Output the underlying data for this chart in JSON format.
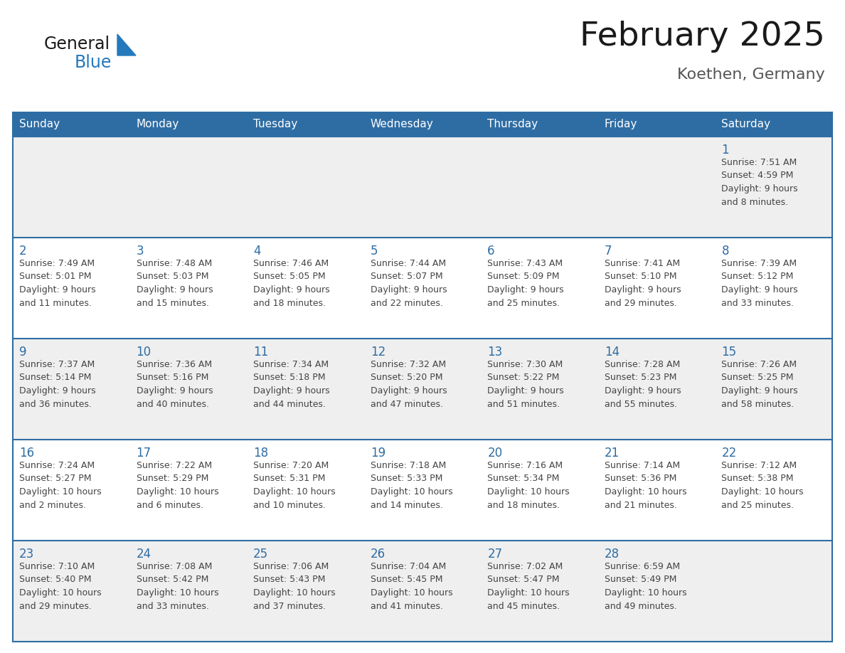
{
  "title": "February 2025",
  "subtitle": "Koethen, Germany",
  "days_of_week": [
    "Sunday",
    "Monday",
    "Tuesday",
    "Wednesday",
    "Thursday",
    "Friday",
    "Saturday"
  ],
  "header_bg": "#2E6DA4",
  "header_text": "#FFFFFF",
  "cell_bg_even": "#EFEFEF",
  "cell_bg_odd": "#FFFFFF",
  "row_divider_color": "#2E6DA4",
  "day_num_color": "#2E6DA4",
  "text_color": "#444444",
  "title_color": "#1A1A1A",
  "subtitle_color": "#555555",
  "logo_general_color": "#1A1A1A",
  "logo_blue_color": "#2479BD",
  "weeks": [
    [
      {
        "day": null,
        "info": null
      },
      {
        "day": null,
        "info": null
      },
      {
        "day": null,
        "info": null
      },
      {
        "day": null,
        "info": null
      },
      {
        "day": null,
        "info": null
      },
      {
        "day": null,
        "info": null
      },
      {
        "day": 1,
        "info": "Sunrise: 7:51 AM\nSunset: 4:59 PM\nDaylight: 9 hours\nand 8 minutes."
      }
    ],
    [
      {
        "day": 2,
        "info": "Sunrise: 7:49 AM\nSunset: 5:01 PM\nDaylight: 9 hours\nand 11 minutes."
      },
      {
        "day": 3,
        "info": "Sunrise: 7:48 AM\nSunset: 5:03 PM\nDaylight: 9 hours\nand 15 minutes."
      },
      {
        "day": 4,
        "info": "Sunrise: 7:46 AM\nSunset: 5:05 PM\nDaylight: 9 hours\nand 18 minutes."
      },
      {
        "day": 5,
        "info": "Sunrise: 7:44 AM\nSunset: 5:07 PM\nDaylight: 9 hours\nand 22 minutes."
      },
      {
        "day": 6,
        "info": "Sunrise: 7:43 AM\nSunset: 5:09 PM\nDaylight: 9 hours\nand 25 minutes."
      },
      {
        "day": 7,
        "info": "Sunrise: 7:41 AM\nSunset: 5:10 PM\nDaylight: 9 hours\nand 29 minutes."
      },
      {
        "day": 8,
        "info": "Sunrise: 7:39 AM\nSunset: 5:12 PM\nDaylight: 9 hours\nand 33 minutes."
      }
    ],
    [
      {
        "day": 9,
        "info": "Sunrise: 7:37 AM\nSunset: 5:14 PM\nDaylight: 9 hours\nand 36 minutes."
      },
      {
        "day": 10,
        "info": "Sunrise: 7:36 AM\nSunset: 5:16 PM\nDaylight: 9 hours\nand 40 minutes."
      },
      {
        "day": 11,
        "info": "Sunrise: 7:34 AM\nSunset: 5:18 PM\nDaylight: 9 hours\nand 44 minutes."
      },
      {
        "day": 12,
        "info": "Sunrise: 7:32 AM\nSunset: 5:20 PM\nDaylight: 9 hours\nand 47 minutes."
      },
      {
        "day": 13,
        "info": "Sunrise: 7:30 AM\nSunset: 5:22 PM\nDaylight: 9 hours\nand 51 minutes."
      },
      {
        "day": 14,
        "info": "Sunrise: 7:28 AM\nSunset: 5:23 PM\nDaylight: 9 hours\nand 55 minutes."
      },
      {
        "day": 15,
        "info": "Sunrise: 7:26 AM\nSunset: 5:25 PM\nDaylight: 9 hours\nand 58 minutes."
      }
    ],
    [
      {
        "day": 16,
        "info": "Sunrise: 7:24 AM\nSunset: 5:27 PM\nDaylight: 10 hours\nand 2 minutes."
      },
      {
        "day": 17,
        "info": "Sunrise: 7:22 AM\nSunset: 5:29 PM\nDaylight: 10 hours\nand 6 minutes."
      },
      {
        "day": 18,
        "info": "Sunrise: 7:20 AM\nSunset: 5:31 PM\nDaylight: 10 hours\nand 10 minutes."
      },
      {
        "day": 19,
        "info": "Sunrise: 7:18 AM\nSunset: 5:33 PM\nDaylight: 10 hours\nand 14 minutes."
      },
      {
        "day": 20,
        "info": "Sunrise: 7:16 AM\nSunset: 5:34 PM\nDaylight: 10 hours\nand 18 minutes."
      },
      {
        "day": 21,
        "info": "Sunrise: 7:14 AM\nSunset: 5:36 PM\nDaylight: 10 hours\nand 21 minutes."
      },
      {
        "day": 22,
        "info": "Sunrise: 7:12 AM\nSunset: 5:38 PM\nDaylight: 10 hours\nand 25 minutes."
      }
    ],
    [
      {
        "day": 23,
        "info": "Sunrise: 7:10 AM\nSunset: 5:40 PM\nDaylight: 10 hours\nand 29 minutes."
      },
      {
        "day": 24,
        "info": "Sunrise: 7:08 AM\nSunset: 5:42 PM\nDaylight: 10 hours\nand 33 minutes."
      },
      {
        "day": 25,
        "info": "Sunrise: 7:06 AM\nSunset: 5:43 PM\nDaylight: 10 hours\nand 37 minutes."
      },
      {
        "day": 26,
        "info": "Sunrise: 7:04 AM\nSunset: 5:45 PM\nDaylight: 10 hours\nand 41 minutes."
      },
      {
        "day": 27,
        "info": "Sunrise: 7:02 AM\nSunset: 5:47 PM\nDaylight: 10 hours\nand 45 minutes."
      },
      {
        "day": 28,
        "info": "Sunrise: 6:59 AM\nSunset: 5:49 PM\nDaylight: 10 hours\nand 49 minutes."
      },
      {
        "day": null,
        "info": null
      }
    ]
  ]
}
